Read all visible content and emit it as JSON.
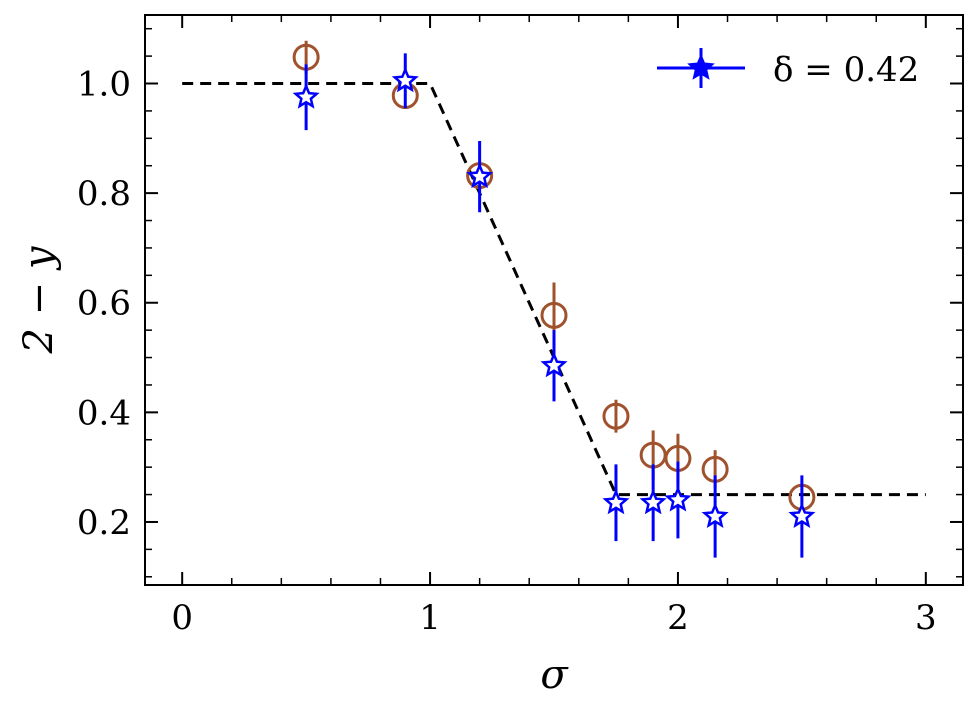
{
  "chart_data": {
    "type": "scatter",
    "xlabel": "σ",
    "ylabel": "2 − y",
    "xlim": [
      -0.15,
      3.15
    ],
    "ylim": [
      0.085,
      1.125
    ],
    "x_ticks": [
      0,
      1,
      2,
      3
    ],
    "x_tick_labels": [
      "0",
      "1",
      "2",
      "3"
    ],
    "y_ticks": [
      0.2,
      0.4,
      0.6,
      0.8,
      1.0
    ],
    "y_tick_labels": [
      "0.2",
      "0.4",
      "0.6",
      "0.8",
      "1.0"
    ],
    "grid": false,
    "legend_placement": "top-right",
    "series": [
      {
        "name": "δ = 0.42",
        "marker": "star",
        "color": "#0000ff",
        "in_legend": true,
        "x": [
          0.5,
          0.9,
          1.2,
          1.5,
          1.75,
          1.9,
          2.0,
          2.15,
          2.5
        ],
        "y": [
          0.975,
          1.005,
          0.83,
          0.485,
          0.235,
          0.235,
          0.24,
          0.21,
          0.21
        ],
        "yerr": [
          0.06,
          0.05,
          0.065,
          0.065,
          0.07,
          0.07,
          0.07,
          0.075,
          0.075
        ]
      },
      {
        "marker": "circle",
        "color": "#a0522d",
        "in_legend": false,
        "x": [
          0.5,
          0.9,
          1.2,
          1.5,
          1.75,
          1.9,
          2.0,
          2.15,
          2.5
        ],
        "y": [
          1.048,
          0.978,
          0.832,
          0.577,
          0.393,
          0.322,
          0.316,
          0.296,
          0.245
        ],
        "yerr": [
          0.03,
          0.0,
          0.0,
          0.06,
          0.03,
          0.045,
          0.045,
          0.035,
          0.0
        ]
      }
    ],
    "reference_line": {
      "style": "dashed",
      "color": "#000000",
      "x": [
        0,
        1,
        1.75,
        3
      ],
      "y": [
        1.0,
        1.0,
        0.25,
        0.25
      ]
    }
  }
}
